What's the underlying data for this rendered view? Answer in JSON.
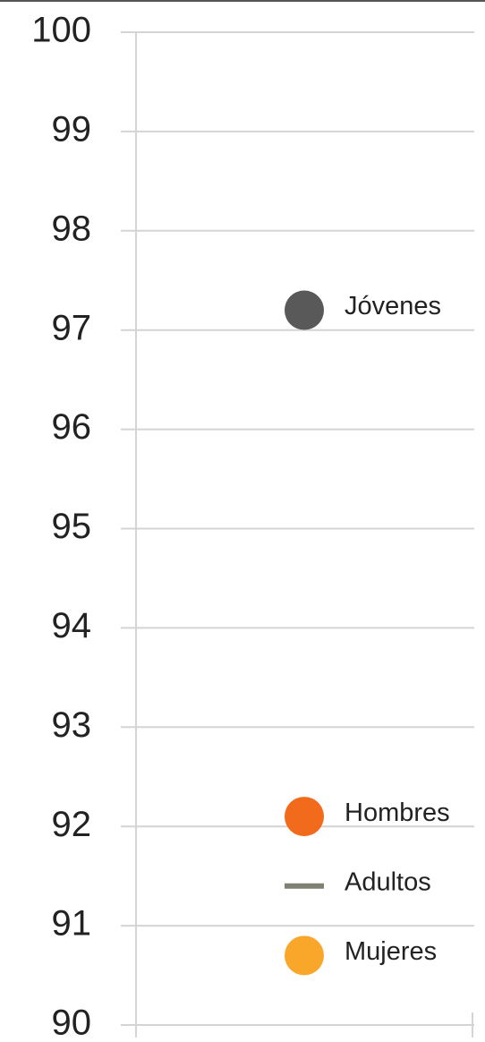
{
  "chart_data": {
    "type": "scatter",
    "categories": [
      null
    ],
    "series": [
      {
        "name": "Jóvenes",
        "color": "#595959",
        "marker": "circle",
        "values": [
          97.2
        ]
      },
      {
        "name": "Hombres",
        "color": "#f26b1d",
        "marker": "circle",
        "values": [
          92.1
        ]
      },
      {
        "name": "Adultos",
        "color": "#7f8272",
        "marker": "dash",
        "values": [
          91.4
        ]
      },
      {
        "name": "Mujeres",
        "color": "#f9a72b",
        "marker": "circle",
        "values": [
          90.7
        ]
      }
    ],
    "ylim": [
      90,
      100
    ],
    "yticks": [
      90,
      91,
      92,
      93,
      94,
      95,
      96,
      97,
      98,
      99,
      100
    ],
    "grid": true
  }
}
